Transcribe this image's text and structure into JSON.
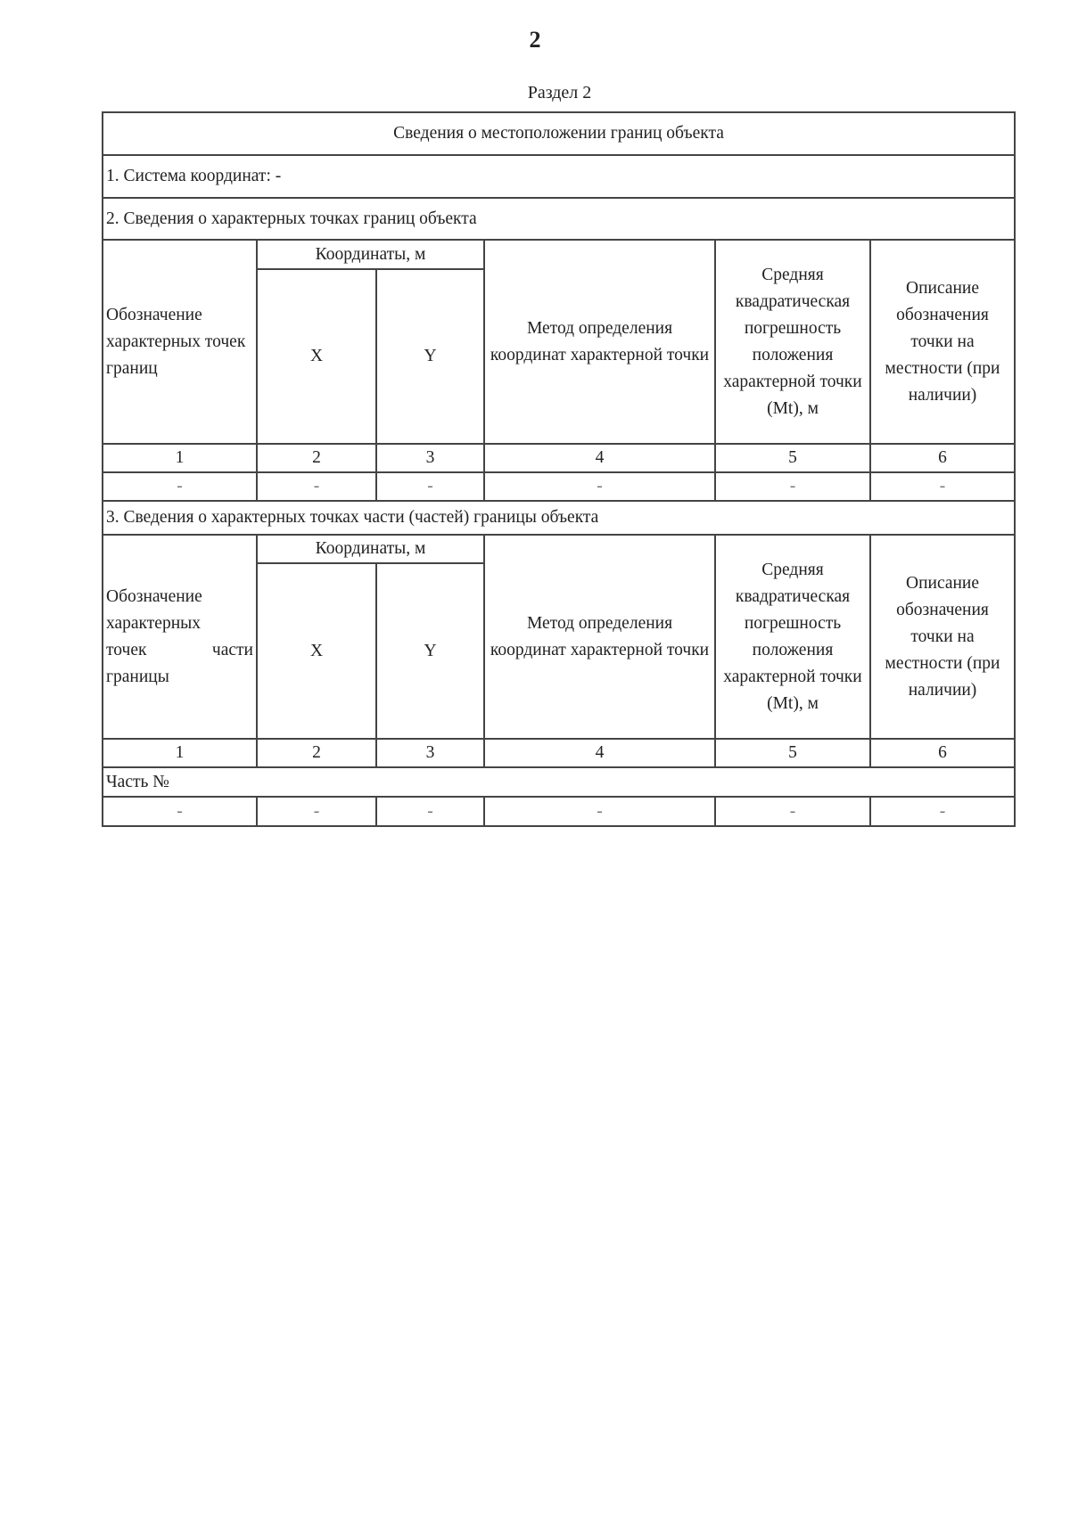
{
  "page_number": "2",
  "section_label": "Раздел 2",
  "table": {
    "title": "Сведения о местоположении границ объекта",
    "coord_system": "1. Система координат: -",
    "section2": {
      "heading": "2. Сведения о характерных точках границ объекта",
      "col1": "Обозначение характерных точек границ",
      "coords_group": "Координаты, м",
      "col_x": "X",
      "col_y": "Y",
      "col4": "Метод определения координат характерной точки",
      "col5": "Средняя квадратическая погрешность положения характерной точки (Mt), м",
      "col6": "Описание обозначения точки на местности (при наличии)",
      "numbers": [
        "1",
        "2",
        "3",
        "4",
        "5",
        "6"
      ],
      "row": [
        "-",
        "-",
        "-",
        "-",
        "-",
        "-"
      ]
    },
    "section3": {
      "heading": "3. Сведения о характерных точках части (частей) границы объекта",
      "col1_a": "Обозначение характерных",
      "col1_b": "точек части",
      "col1_c": "границы",
      "coords_group": "Координаты, м",
      "col_x": "X",
      "col_y": "Y",
      "col4": "Метод определения координат характерной точки",
      "col5": "Средняя квадратическая погрешность положения характерной точки (Mt), м",
      "col6": "Описание обозначения точки на местности (при наличии)",
      "numbers": [
        "1",
        "2",
        "3",
        "4",
        "5",
        "6"
      ],
      "part_label": "Часть №",
      "row": [
        "-",
        "-",
        "-",
        "-",
        "-",
        "-"
      ]
    }
  }
}
